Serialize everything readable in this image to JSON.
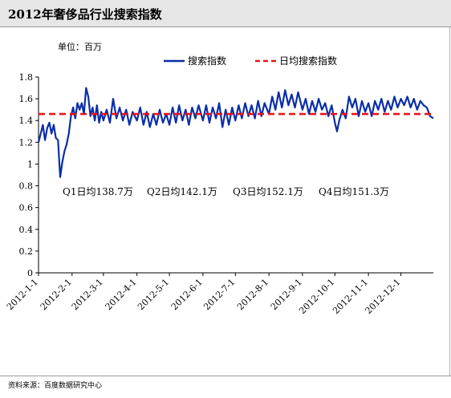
{
  "title": "2012年奢侈品行业搜索指数",
  "source": "资料来源：百度数据研究中心",
  "chart_data": {
    "type": "line",
    "unit_label": "单位：百万",
    "ylim": [
      0,
      1.8
    ],
    "yticks": [
      "0",
      "0.2",
      "0.4",
      "0.6",
      "0.8",
      "1",
      "1.2",
      "1.4",
      "1.6",
      "1.8"
    ],
    "xlim": [
      "2012-01-01",
      "2012-12-31"
    ],
    "xticks": [
      "2012-1-1",
      "2012-2-1",
      "2012-3-1",
      "2012-4-1",
      "2012-5-1",
      "2012-6-1",
      "2012-7-1",
      "2012-8-1",
      "2012-9-1",
      "2012-10-1",
      "2012-11-1",
      "2012-12-1"
    ],
    "legend_position": "top-right",
    "grid": false,
    "series": [
      {
        "name": "搜索指数",
        "color": "#0a2ea8",
        "style": "solid",
        "values": [
          [
            "2012-01-01",
            1.2
          ],
          [
            "2012-01-03",
            1.28
          ],
          [
            "2012-01-05",
            1.36
          ],
          [
            "2012-01-07",
            1.22
          ],
          [
            "2012-01-09",
            1.33
          ],
          [
            "2012-01-11",
            1.38
          ],
          [
            "2012-01-13",
            1.28
          ],
          [
            "2012-01-15",
            1.36
          ],
          [
            "2012-01-17",
            1.24
          ],
          [
            "2012-01-19",
            1.22
          ],
          [
            "2012-01-21",
            0.88
          ],
          [
            "2012-01-23",
            1.02
          ],
          [
            "2012-01-25",
            1.12
          ],
          [
            "2012-01-27",
            1.18
          ],
          [
            "2012-01-29",
            1.28
          ],
          [
            "2012-01-31",
            1.44
          ],
          [
            "2012-02-02",
            1.52
          ],
          [
            "2012-02-04",
            1.42
          ],
          [
            "2012-02-06",
            1.56
          ],
          [
            "2012-02-08",
            1.5
          ],
          [
            "2012-02-10",
            1.56
          ],
          [
            "2012-02-12",
            1.46
          ],
          [
            "2012-02-14",
            1.7
          ],
          [
            "2012-02-16",
            1.62
          ],
          [
            "2012-02-18",
            1.44
          ],
          [
            "2012-02-20",
            1.52
          ],
          [
            "2012-02-22",
            1.4
          ],
          [
            "2012-02-24",
            1.54
          ],
          [
            "2012-02-26",
            1.38
          ],
          [
            "2012-02-28",
            1.48
          ],
          [
            "2012-03-01",
            1.4
          ],
          [
            "2012-03-04",
            1.5
          ],
          [
            "2012-03-07",
            1.38
          ],
          [
            "2012-03-10",
            1.6
          ],
          [
            "2012-03-13",
            1.42
          ],
          [
            "2012-03-16",
            1.52
          ],
          [
            "2012-03-19",
            1.4
          ],
          [
            "2012-03-22",
            1.5
          ],
          [
            "2012-03-25",
            1.36
          ],
          [
            "2012-03-28",
            1.48
          ],
          [
            "2012-04-01",
            1.4
          ],
          [
            "2012-04-04",
            1.52
          ],
          [
            "2012-04-07",
            1.36
          ],
          [
            "2012-04-10",
            1.48
          ],
          [
            "2012-04-13",
            1.34
          ],
          [
            "2012-04-16",
            1.46
          ],
          [
            "2012-04-19",
            1.36
          ],
          [
            "2012-04-22",
            1.5
          ],
          [
            "2012-04-25",
            1.38
          ],
          [
            "2012-04-28",
            1.46
          ],
          [
            "2012-05-01",
            1.36
          ],
          [
            "2012-05-04",
            1.52
          ],
          [
            "2012-05-07",
            1.38
          ],
          [
            "2012-05-10",
            1.54
          ],
          [
            "2012-05-13",
            1.4
          ],
          [
            "2012-05-16",
            1.5
          ],
          [
            "2012-05-19",
            1.36
          ],
          [
            "2012-05-22",
            1.52
          ],
          [
            "2012-05-25",
            1.42
          ],
          [
            "2012-05-28",
            1.54
          ],
          [
            "2012-06-01",
            1.4
          ],
          [
            "2012-06-04",
            1.54
          ],
          [
            "2012-06-07",
            1.38
          ],
          [
            "2012-06-10",
            1.52
          ],
          [
            "2012-06-13",
            1.42
          ],
          [
            "2012-06-16",
            1.56
          ],
          [
            "2012-06-19",
            1.34
          ],
          [
            "2012-06-22",
            1.5
          ],
          [
            "2012-06-25",
            1.36
          ],
          [
            "2012-06-28",
            1.52
          ],
          [
            "2012-07-01",
            1.4
          ],
          [
            "2012-07-04",
            1.54
          ],
          [
            "2012-07-07",
            1.42
          ],
          [
            "2012-07-10",
            1.56
          ],
          [
            "2012-07-13",
            1.44
          ],
          [
            "2012-07-16",
            1.54
          ],
          [
            "2012-07-19",
            1.42
          ],
          [
            "2012-07-22",
            1.58
          ],
          [
            "2012-07-25",
            1.44
          ],
          [
            "2012-07-28",
            1.56
          ],
          [
            "2012-08-01",
            1.46
          ],
          [
            "2012-08-04",
            1.62
          ],
          [
            "2012-08-07",
            1.5
          ],
          [
            "2012-08-10",
            1.66
          ],
          [
            "2012-08-13",
            1.52
          ],
          [
            "2012-08-16",
            1.68
          ],
          [
            "2012-08-19",
            1.54
          ],
          [
            "2012-08-22",
            1.64
          ],
          [
            "2012-08-25",
            1.52
          ],
          [
            "2012-08-28",
            1.66
          ],
          [
            "2012-09-01",
            1.5
          ],
          [
            "2012-09-04",
            1.6
          ],
          [
            "2012-09-07",
            1.46
          ],
          [
            "2012-09-10",
            1.58
          ],
          [
            "2012-09-13",
            1.48
          ],
          [
            "2012-09-16",
            1.6
          ],
          [
            "2012-09-19",
            1.5
          ],
          [
            "2012-09-22",
            1.56
          ],
          [
            "2012-09-25",
            1.44
          ],
          [
            "2012-09-28",
            1.54
          ],
          [
            "2012-10-01",
            1.38
          ],
          [
            "2012-10-03",
            1.3
          ],
          [
            "2012-10-05",
            1.4
          ],
          [
            "2012-10-08",
            1.5
          ],
          [
            "2012-10-11",
            1.42
          ],
          [
            "2012-10-14",
            1.62
          ],
          [
            "2012-10-17",
            1.52
          ],
          [
            "2012-10-20",
            1.6
          ],
          [
            "2012-10-23",
            1.44
          ],
          [
            "2012-10-26",
            1.58
          ],
          [
            "2012-10-29",
            1.48
          ],
          [
            "2012-11-01",
            1.56
          ],
          [
            "2012-11-04",
            1.44
          ],
          [
            "2012-11-07",
            1.58
          ],
          [
            "2012-11-10",
            1.5
          ],
          [
            "2012-11-13",
            1.6
          ],
          [
            "2012-11-16",
            1.48
          ],
          [
            "2012-11-19",
            1.58
          ],
          [
            "2012-11-22",
            1.5
          ],
          [
            "2012-11-25",
            1.62
          ],
          [
            "2012-11-28",
            1.52
          ],
          [
            "2012-12-01",
            1.6
          ],
          [
            "2012-12-04",
            1.54
          ],
          [
            "2012-12-07",
            1.62
          ],
          [
            "2012-12-10",
            1.52
          ],
          [
            "2012-12-13",
            1.6
          ],
          [
            "2012-12-16",
            1.5
          ],
          [
            "2012-12-19",
            1.58
          ],
          [
            "2012-12-22",
            1.54
          ],
          [
            "2012-12-25",
            1.52
          ],
          [
            "2012-12-28",
            1.44
          ],
          [
            "2012-12-31",
            1.42
          ]
        ]
      },
      {
        "name": "日均搜索指数",
        "color": "#e8141b",
        "style": "dashed",
        "values": [
          [
            "2012-01-01",
            1.46
          ],
          [
            "2012-12-31",
            1.46
          ]
        ]
      }
    ],
    "annotations": [
      {
        "text": "Q1日均138.7万",
        "value": 138.7
      },
      {
        "text": "Q2日均142.1万",
        "value": 142.1
      },
      {
        "text": "Q3日均152.1万",
        "value": 152.1
      },
      {
        "text": "Q4日均151.3万",
        "value": 151.3
      }
    ]
  }
}
